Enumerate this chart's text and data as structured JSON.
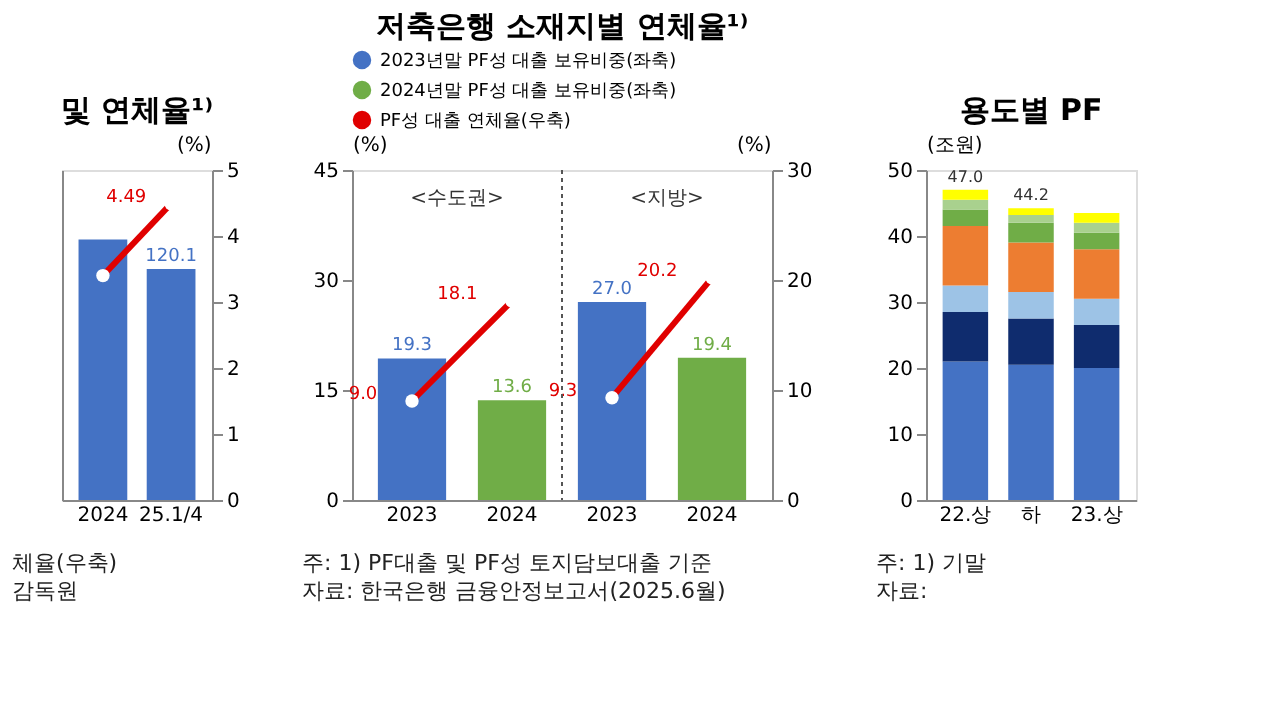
{
  "chart_data": [
    {
      "type": "bar",
      "title": "및 연체율¹⁾",
      "categories": [
        "2024",
        "25.1/4"
      ],
      "ylim": [
        0,
        171.6
      ],
      "y2lim": [
        0,
        5
      ],
      "y2ticks": [
        0,
        1,
        2,
        3,
        4,
        5
      ],
      "y2label": "(%)",
      "tick_labels": "xy2",
      "legend": false,
      "annotations": [
        "체율(우축)",
        "감독원"
      ],
      "series": [
        {
          "type": "bar",
          "color": "#4472c4",
          "values": [
            135.5,
            120.1
          ],
          "value_labels": [
            null,
            "120.1"
          ]
        },
        {
          "type": "line",
          "axis": "y2",
          "color": "#e00000",
          "marker": "circle",
          "values": [
            3.4,
            4.49
          ],
          "value_labels": [
            null,
            "4.49"
          ]
        }
      ]
    },
    {
      "type": "bar",
      "title": "저축은행 소재지별 연체율¹⁾",
      "subtitle": [
        "<수도권>",
        "<지방>"
      ],
      "categories": [
        "2023",
        "2024",
        "2023",
        "2024"
      ],
      "ylim": [
        0,
        45
      ],
      "yticks": [
        0,
        15,
        30,
        45
      ],
      "ylabel": "(%)",
      "y2lim": [
        0,
        30
      ],
      "y2ticks": [
        0,
        10,
        20,
        30
      ],
      "y2label": "(%)",
      "legend": "top",
      "annotations": [
        "주: 1) PF대출 및 PF성 토지담보대출 기준",
        "자료: 한국은행 금융안정보고서(2025.6월)"
      ],
      "series": [
        {
          "type": "bar",
          "name": "2023년말 PF성 대출 보유비중(좌축)",
          "color": "#4472c4",
          "values": [
            19.3,
            null,
            27.0,
            null
          ],
          "value_labels": [
            "19.3",
            null,
            "27.0",
            null
          ]
        },
        {
          "type": "bar",
          "name": "2024년말 PF성 대출 보유비중(좌축)",
          "color": "#70ad47",
          "values": [
            null,
            13.6,
            null,
            19.4
          ],
          "value_labels": [
            null,
            "13.6",
            null,
            "19.4"
          ]
        },
        {
          "type": "line",
          "axis": "y2",
          "name": "PF성 대출 연체율(우축)",
          "color": "#e00000",
          "marker": "circle",
          "values": [
            9.0,
            18.1,
            null,
            null
          ],
          "value_labels": [
            "9.0",
            "18.1",
            null,
            null
          ]
        },
        {
          "type": "line",
          "axis": "y2",
          "color": "#e00000",
          "marker": "circle",
          "values": [
            null,
            null,
            9.3,
            20.2
          ],
          "value_labels": [
            null,
            null,
            "9.3",
            "20.2"
          ]
        }
      ]
    },
    {
      "type": "bar",
      "title": "용도별 PF",
      "categories": [
        "22.상",
        "하",
        "23.상"
      ],
      "stacked": true,
      "ylim": [
        0,
        50
      ],
      "yticks": [
        0,
        10,
        20,
        30,
        40,
        50
      ],
      "ylabel": "(조원)",
      "legend": false,
      "totals": [
        "47.0",
        "44.2",
        null
      ],
      "annotations": [
        "주: 1) 기말",
        "자료:"
      ],
      "series": [
        {
          "color": "#4472c4",
          "values": [
            21.0,
            20.5,
            20.0
          ]
        },
        {
          "color": "#0f2c6e",
          "values": [
            7.5,
            7.0,
            6.5
          ]
        },
        {
          "color": "#9dc3e6",
          "values": [
            4.0,
            4.0,
            4.0
          ]
        },
        {
          "color": "#ed7d31",
          "values": [
            9.0,
            7.5,
            7.5
          ]
        },
        {
          "color": "#70ad47",
          "values": [
            2.5,
            3.0,
            2.5
          ]
        },
        {
          "color": "#a9d18e",
          "values": [
            1.5,
            1.2,
            1.5
          ]
        },
        {
          "color": "#ffff00",
          "values": [
            1.5,
            1.0,
            1.5
          ]
        }
      ]
    }
  ]
}
